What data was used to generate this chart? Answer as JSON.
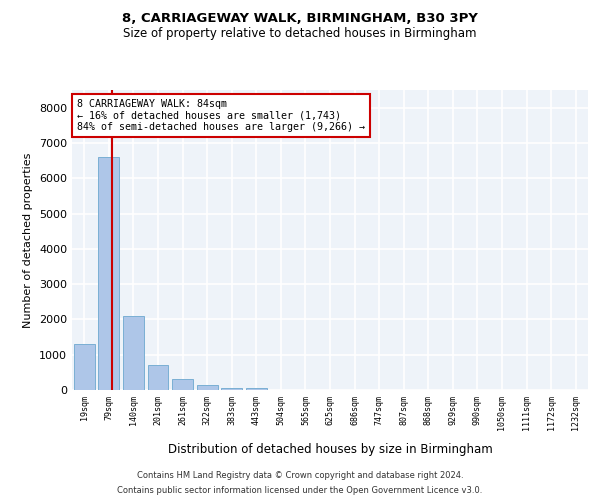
{
  "title": "8, CARRIAGEWAY WALK, BIRMINGHAM, B30 3PY",
  "subtitle": "Size of property relative to detached houses in Birmingham",
  "xlabel": "Distribution of detached houses by size in Birmingham",
  "ylabel": "Number of detached properties",
  "bar_labels": [
    "19sqm",
    "79sqm",
    "140sqm",
    "201sqm",
    "261sqm",
    "322sqm",
    "383sqm",
    "443sqm",
    "504sqm",
    "565sqm",
    "625sqm",
    "686sqm",
    "747sqm",
    "807sqm",
    "868sqm",
    "929sqm",
    "990sqm",
    "1050sqm",
    "1111sqm",
    "1172sqm",
    "1232sqm"
  ],
  "bar_values": [
    1300,
    6600,
    2100,
    700,
    300,
    130,
    70,
    70,
    0,
    0,
    0,
    0,
    0,
    0,
    0,
    0,
    0,
    0,
    0,
    0,
    0
  ],
  "bar_color": "#aec6e8",
  "bar_edge_color": "#7aafd4",
  "bg_color": "#eef3f9",
  "grid_color": "#ffffff",
  "vline_x": 1.13,
  "vline_color": "#cc0000",
  "annotation_text": "8 CARRIAGEWAY WALK: 84sqm\n← 16% of detached houses are smaller (1,743)\n84% of semi-detached houses are larger (9,266) →",
  "annotation_box_color": "#cc0000",
  "ylim": [
    0,
    8500
  ],
  "yticks": [
    0,
    1000,
    2000,
    3000,
    4000,
    5000,
    6000,
    7000,
    8000
  ],
  "footer_line1": "Contains HM Land Registry data © Crown copyright and database right 2024.",
  "footer_line2": "Contains public sector information licensed under the Open Government Licence v3.0."
}
